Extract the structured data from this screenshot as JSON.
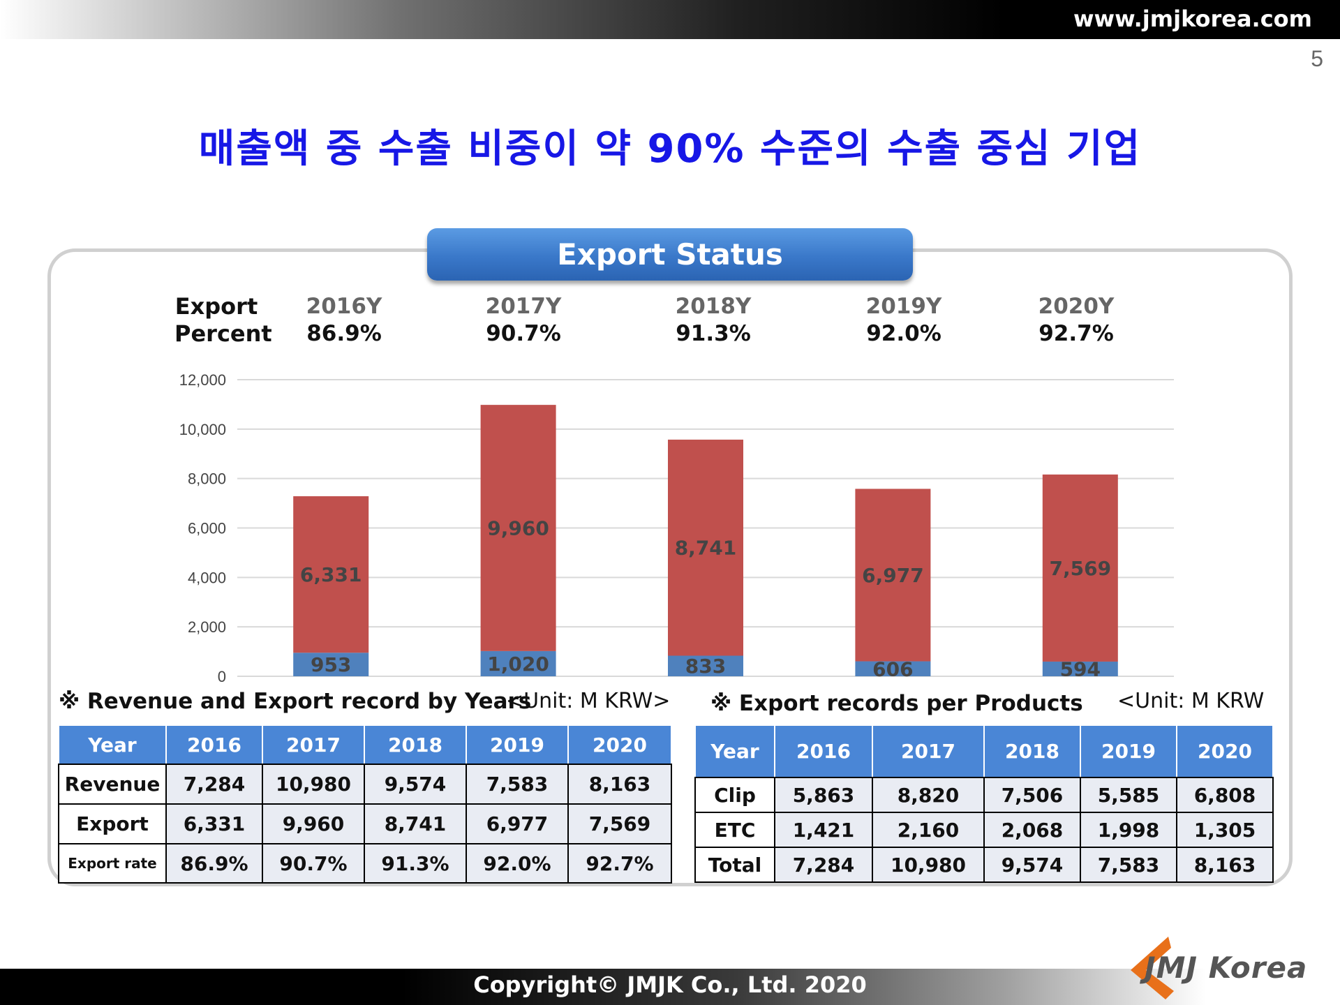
{
  "header": {
    "url": "www.jmjkorea.com",
    "page_number": "5"
  },
  "title": "매출액 중 수출 비중이 약 90% 수준의 수출 중심 기업",
  "status_header": "Export Status",
  "export_percent": {
    "label_line1": "Export",
    "label_line2": "Percent",
    "items": [
      {
        "year": "2016Y",
        "value": "86.9%"
      },
      {
        "year": "2017Y",
        "value": "90.7%"
      },
      {
        "year": "2018Y",
        "value": "91.3%"
      },
      {
        "year": "2019Y",
        "value": "92.0%"
      },
      {
        "year": "2020Y",
        "value": "92.7%"
      }
    ]
  },
  "chart_data": {
    "type": "bar",
    "stacked": true,
    "categories": [
      "2016",
      "2017",
      "2018",
      "2019",
      "2020"
    ],
    "series": [
      {
        "values": [
          953,
          1020,
          833,
          606,
          594
        ],
        "labels": [
          "953",
          "1,020",
          "833",
          "606",
          "594"
        ],
        "color": "#4f81bd"
      },
      {
        "values": [
          6331,
          9960,
          8741,
          6977,
          7569
        ],
        "labels": [
          "6,331",
          "9,960",
          "8,741",
          "6,977",
          "7,569"
        ],
        "color": "#c0504d"
      }
    ],
    "ylim": [
      0,
      12000
    ],
    "yticks": [
      0,
      2000,
      4000,
      6000,
      8000,
      10000,
      12000
    ],
    "ytick_labels": [
      "0",
      "2,000",
      "4,000",
      "6,000",
      "8,000",
      "10,000",
      "12,000"
    ],
    "grid": true,
    "legend": "none"
  },
  "revenue_section": {
    "title": "※ Revenue and Export record by Years",
    "unit": "<Unit: M KRW>",
    "headers": [
      "Year",
      "2016",
      "2017",
      "2018",
      "2019",
      "2020"
    ],
    "rows": [
      [
        "Revenue",
        "7,284",
        "10,980",
        "9,574",
        "7,583",
        "8,163"
      ],
      [
        "Export",
        "6,331",
        "9,960",
        "8,741",
        "6,977",
        "7,569"
      ],
      [
        "Export rate",
        "86.9%",
        "90.7%",
        "91.3%",
        "92.0%",
        "92.7%"
      ]
    ]
  },
  "products_section": {
    "title": "※ Export records per Products",
    "unit": "<Unit: M KRW",
    "headers": [
      "Year",
      "2016",
      "2017",
      "2018",
      "2019",
      "2020"
    ],
    "rows": [
      [
        "Clip",
        "5,863",
        "8,820",
        "7,506",
        "5,585",
        "6,808"
      ],
      [
        "ETC",
        "1,421",
        "2,160",
        "2,068",
        "1,998",
        "1,305"
      ],
      [
        "Total",
        "7,284",
        "10,980",
        "9,574",
        "7,583",
        "8,163"
      ]
    ]
  },
  "footer": "Copyright© JMJK Co., Ltd. 2020",
  "logo": {
    "text": "JMJ Korea",
    "color": "#e8701a"
  }
}
